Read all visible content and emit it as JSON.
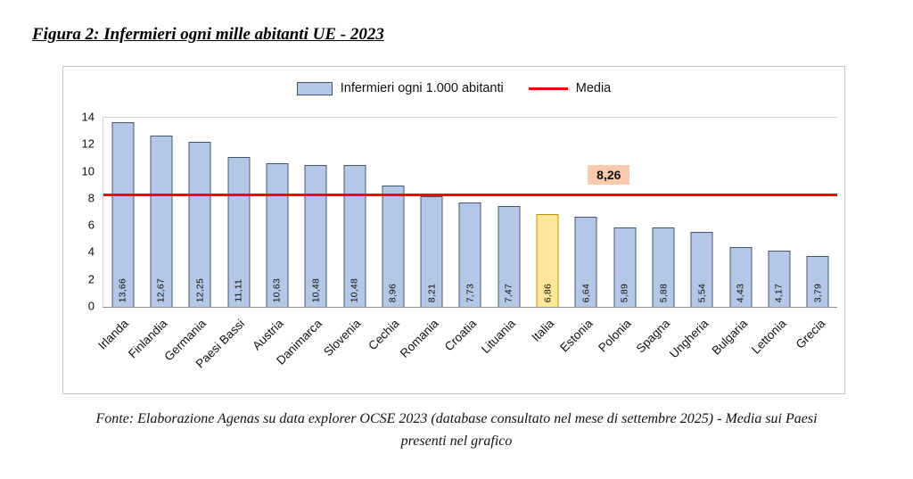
{
  "figure": {
    "title": "Figura 2: Infermieri ogni mille abitanti UE - 2023"
  },
  "legend": {
    "bars": "Infermieri ogni 1.000 abitanti",
    "media": "Media"
  },
  "footnote": {
    "line1": "Fonte: Elaborazione Agenas su data explorer OCSE 2023 (database consultato nel mese di settembre 2025) - Media sui Paesi",
    "line2": "presenti nel grafico"
  },
  "chart_data": {
    "type": "bar",
    "title": "Infermieri ogni mille abitanti UE - 2023",
    "categories": [
      "Irlanda",
      "Finlandia",
      "Germania",
      "Paesi Bassi",
      "Austria",
      "Danimarca",
      "Slovenia",
      "Cechia",
      "Romania",
      "Croatia",
      "Lituania",
      "Italia",
      "Estonia",
      "Polonia",
      "Spagna",
      "Ungheria",
      "Bulgaria",
      "Lettonia",
      "Grecia"
    ],
    "values": [
      13.66,
      12.67,
      12.25,
      11.11,
      10.63,
      10.48,
      10.48,
      8.96,
      8.21,
      7.73,
      7.47,
      6.86,
      6.64,
      5.89,
      5.88,
      5.54,
      4.43,
      4.17,
      3.79
    ],
    "highlight_category": "Italia",
    "mean": 8.26,
    "mean_label": "8,26",
    "xlabel": "",
    "ylabel": "",
    "ylim": [
      0,
      14
    ],
    "ytick_step": 2,
    "grid": false,
    "legend_position": "top",
    "xlabel_rotation": -45,
    "colors": {
      "bar_fill": "#B4C7E7",
      "bar_border": "#44546A",
      "highlight_fill": "#FFE699",
      "highlight_border": "#BF8F00",
      "mean_line": "#FF0000",
      "mean_label_bg": "#F8CBAD"
    }
  }
}
